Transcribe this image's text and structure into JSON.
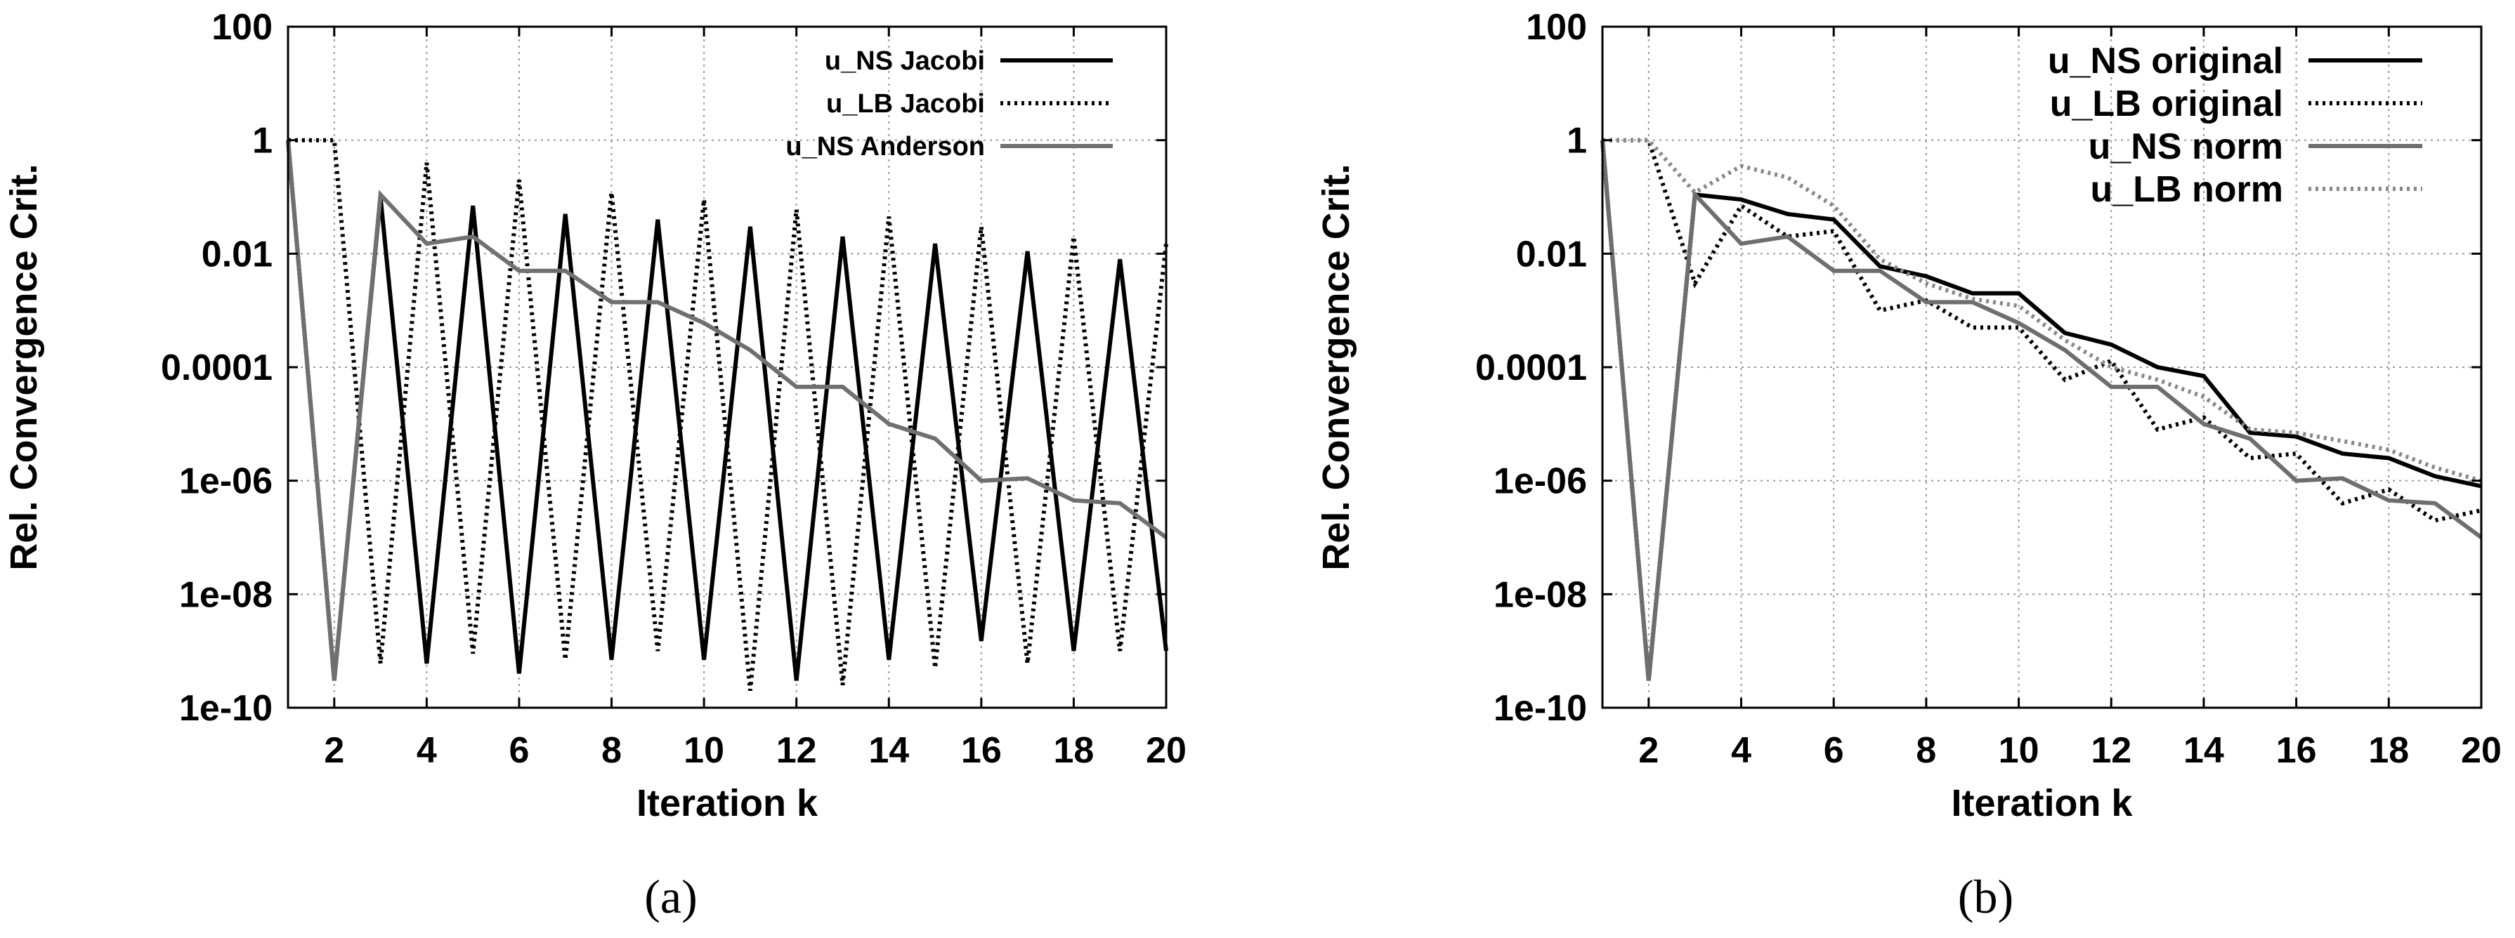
{
  "chart_data": [
    {
      "type": "line",
      "panel": "a",
      "caption": "(a)",
      "xlabel": "Iteration k",
      "ylabel": "Rel. Convergence Crit.",
      "yscale": "log",
      "xlim": [
        1,
        20
      ],
      "ylim": [
        1e-10,
        100
      ],
      "grid": true,
      "legend_position": "top-right",
      "x_ticks": [
        2,
        4,
        6,
        8,
        10,
        12,
        14,
        16,
        18,
        20
      ],
      "y_ticks": [
        "100",
        "1",
        "0.01",
        "0.0001",
        "1e-06",
        "1e-08",
        "1e-10"
      ],
      "y_tick_values": [
        100,
        1,
        0.01,
        0.0001,
        1e-06,
        1e-08,
        1e-10
      ],
      "series": [
        {
          "name": "u_NS Jacobi",
          "style": "solid",
          "color": "#000000",
          "x": [
            1,
            2,
            3,
            4,
            5,
            6,
            7,
            8,
            9,
            10,
            11,
            12,
            13,
            14,
            15,
            16,
            17,
            18,
            19,
            20
          ],
          "values": [
            1,
            3e-10,
            0.1,
            6e-10,
            0.07,
            4e-10,
            0.05,
            7e-10,
            0.04,
            7e-10,
            0.03,
            3e-10,
            0.02,
            7e-10,
            0.015,
            1.5e-09,
            0.011,
            1e-09,
            0.008,
            1e-09
          ]
        },
        {
          "name": "u_LB Jacobi",
          "style": "dotted",
          "color": "#000000",
          "x": [
            1,
            2,
            3,
            4,
            5,
            6,
            7,
            8,
            9,
            10,
            11,
            12,
            13,
            14,
            15,
            16,
            17,
            18,
            19,
            20
          ],
          "values": [
            1,
            1,
            6e-10,
            0.4,
            9e-10,
            0.2,
            7e-10,
            0.12,
            1e-09,
            0.09,
            2e-10,
            0.06,
            2.5e-10,
            0.045,
            5e-10,
            0.03,
            6e-10,
            0.02,
            1e-09,
            0.015
          ]
        },
        {
          "name": "u_NS Anderson",
          "style": "solid",
          "color": "#707070",
          "x": [
            1,
            2,
            3,
            4,
            5,
            6,
            7,
            8,
            9,
            10,
            11,
            12,
            13,
            14,
            15,
            16,
            17,
            18,
            19,
            20
          ],
          "values": [
            1,
            3e-10,
            0.11,
            0.015,
            0.02,
            0.005,
            0.005,
            0.0014,
            0.0014,
            0.0006,
            0.0002,
            4.5e-05,
            4.5e-05,
            1e-05,
            5.5e-06,
            1e-06,
            1.1e-06,
            4.5e-07,
            4e-07,
            1e-07
          ]
        }
      ]
    },
    {
      "type": "line",
      "panel": "b",
      "caption": "(b)",
      "xlabel": "Iteration k",
      "ylabel": "Rel. Convergence Crit.",
      "yscale": "log",
      "xlim": [
        1,
        20
      ],
      "ylim": [
        1e-10,
        100
      ],
      "grid": true,
      "legend_position": "top-right",
      "x_ticks": [
        2,
        4,
        6,
        8,
        10,
        12,
        14,
        16,
        18,
        20
      ],
      "y_ticks": [
        "100",
        "1",
        "0.01",
        "0.0001",
        "1e-06",
        "1e-08",
        "1e-10"
      ],
      "y_tick_values": [
        100,
        1,
        0.01,
        0.0001,
        1e-06,
        1e-08,
        1e-10
      ],
      "series": [
        {
          "name": "u_NS original",
          "style": "solid",
          "color": "#000000",
          "x": [
            1,
            2,
            3,
            4,
            5,
            6,
            7,
            8,
            9,
            10,
            11,
            12,
            13,
            14,
            15,
            16,
            17,
            18,
            19,
            20
          ],
          "values": [
            1,
            3e-10,
            0.11,
            0.09,
            0.05,
            0.04,
            0.006,
            0.004,
            0.002,
            0.002,
            0.0004,
            0.00025,
            0.0001,
            7e-05,
            7e-06,
            6e-06,
            3e-06,
            2.5e-06,
            1.2e-06,
            8e-07
          ]
        },
        {
          "name": "u_LB original",
          "style": "dotted",
          "color": "#000000",
          "x": [
            1,
            2,
            3,
            4,
            5,
            6,
            7,
            8,
            9,
            10,
            11,
            12,
            13,
            14,
            15,
            16,
            17,
            18,
            19,
            20
          ],
          "values": [
            1,
            1,
            0.003,
            0.07,
            0.02,
            0.025,
            0.001,
            0.0015,
            0.0005,
            0.0005,
            6e-05,
            0.00013,
            8e-06,
            1.3e-05,
            2.5e-06,
            3e-06,
            4e-07,
            7e-07,
            2e-07,
            3e-07
          ]
        },
        {
          "name": "u_NS norm",
          "style": "solid",
          "color": "#6e6e6e",
          "x": [
            1,
            2,
            3,
            4,
            5,
            6,
            7,
            8,
            9,
            10,
            11,
            12,
            13,
            14,
            15,
            16,
            17,
            18,
            19,
            20
          ],
          "values": [
            1,
            3e-10,
            0.11,
            0.015,
            0.02,
            0.005,
            0.005,
            0.0014,
            0.0014,
            0.0006,
            0.0002,
            4.5e-05,
            4.5e-05,
            1e-05,
            5.5e-06,
            1e-06,
            1.1e-06,
            4.5e-07,
            4e-07,
            1e-07
          ]
        },
        {
          "name": "u_LB norm",
          "style": "dotted",
          "color": "#888888",
          "x": [
            1,
            2,
            3,
            4,
            5,
            6,
            7,
            8,
            9,
            10,
            11,
            12,
            13,
            14,
            15,
            16,
            17,
            18,
            19,
            20
          ],
          "values": [
            1,
            1,
            0.12,
            0.35,
            0.22,
            0.07,
            0.008,
            0.003,
            0.0016,
            0.0012,
            0.0003,
            0.0001,
            6e-05,
            3e-05,
            8e-06,
            7e-06,
            5e-06,
            3.5e-06,
            1.7e-06,
            1e-06
          ]
        }
      ]
    }
  ]
}
